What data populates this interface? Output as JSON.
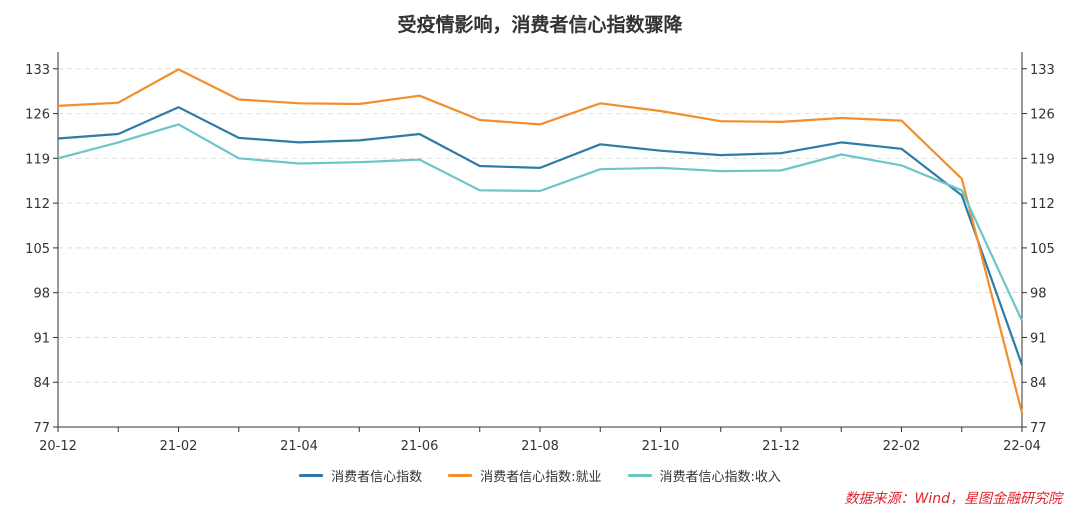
{
  "chart_data": {
    "type": "line",
    "title": "受疫情影响，消费者信心指数骤降",
    "x": [
      "20-12",
      "21-01",
      "21-02",
      "21-03",
      "21-04",
      "21-05",
      "21-06",
      "21-07",
      "21-08",
      "21-09",
      "21-10",
      "21-11",
      "21-12",
      "22-01",
      "22-02",
      "22-03",
      "22-04"
    ],
    "x_tick_labels": [
      "20-12",
      "21-02",
      "21-04",
      "21-06",
      "21-08",
      "21-10",
      "21-12",
      "22-02",
      "22-04"
    ],
    "y_ticks": [
      77,
      84,
      91,
      98,
      105,
      112,
      119,
      126,
      133
    ],
    "ylim": [
      77,
      135
    ],
    "grid": true,
    "legend_position": "bottom",
    "series": [
      {
        "name": "消费者信心指数",
        "color": "#2e7ca6",
        "values": [
          122.1,
          122.8,
          127.0,
          122.2,
          121.5,
          121.8,
          122.8,
          117.8,
          117.5,
          121.2,
          120.2,
          119.5,
          119.8,
          121.5,
          120.5,
          113.2,
          86.7
        ]
      },
      {
        "name": "消费者信心指数:就业",
        "color": "#f28e2b",
        "values": [
          127.2,
          127.7,
          132.9,
          128.2,
          127.6,
          127.5,
          128.8,
          125.0,
          124.3,
          127.6,
          126.4,
          124.8,
          124.7,
          125.3,
          124.9,
          115.8,
          79.2
        ]
      },
      {
        "name": "消费者信心指数:收入",
        "color": "#6cc5c8",
        "values": [
          119.0,
          121.5,
          124.3,
          119.0,
          118.2,
          118.4,
          118.8,
          114.0,
          113.9,
          117.3,
          117.5,
          117.0,
          117.1,
          119.6,
          117.9,
          114.0,
          93.6
        ]
      }
    ]
  },
  "source_text": "数据来源：Wind，星图金融研究院"
}
